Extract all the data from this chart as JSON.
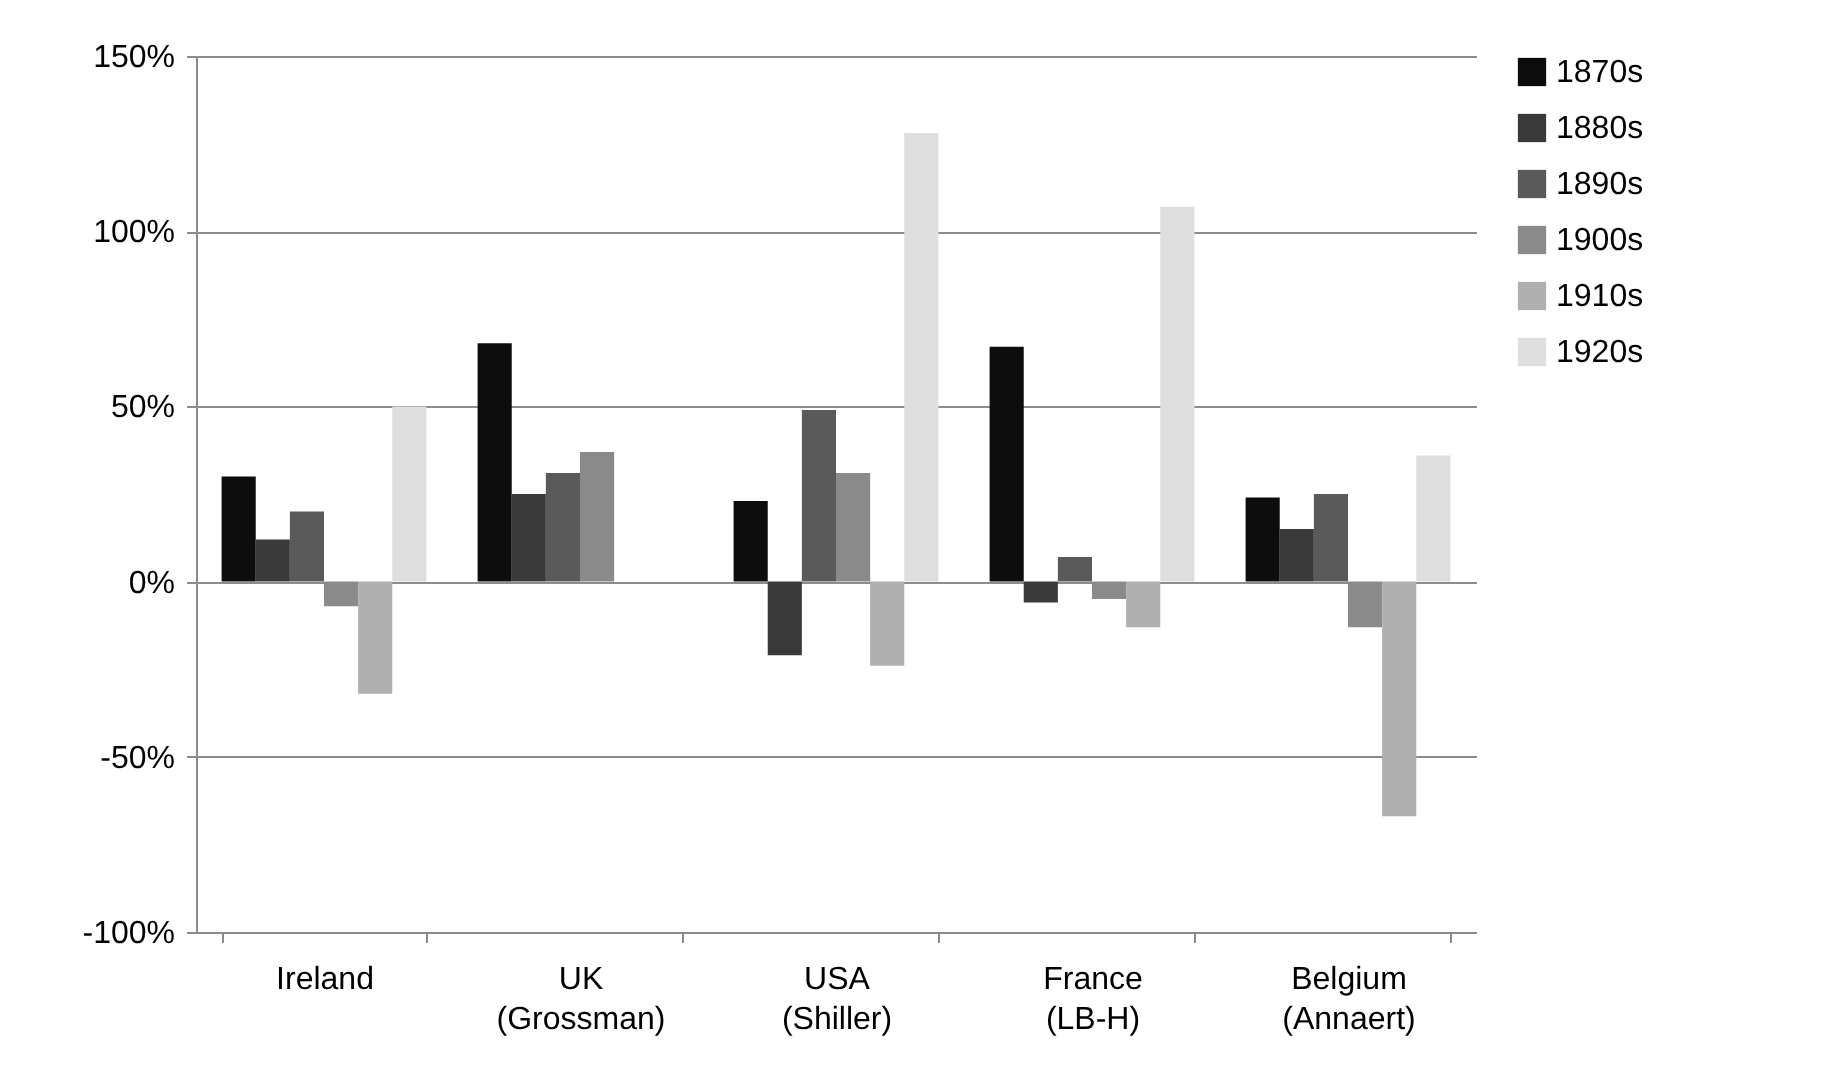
{
  "chart_data": {
    "type": "bar",
    "categories": [
      "Ireland",
      "UK\n(Grossman)",
      "USA\n(Shiller)",
      "France\n(LB-H)",
      "Belgium\n(Annaert)"
    ],
    "series": [
      {
        "name": "1870s",
        "color": "#0d0d0d",
        "values": [
          30,
          68,
          23,
          67,
          24
        ]
      },
      {
        "name": "1880s",
        "color": "#3a3a3a",
        "values": [
          12,
          25,
          -21,
          -6,
          15
        ]
      },
      {
        "name": "1890s",
        "color": "#5a5a5a",
        "values": [
          20,
          31,
          49,
          7,
          25
        ]
      },
      {
        "name": "1900s",
        "color": "#8a8a8a",
        "values": [
          -7,
          37,
          31,
          -5,
          -13
        ]
      },
      {
        "name": "1910s",
        "color": "#b0b0b0",
        "values": [
          -32,
          null,
          -24,
          -13,
          -67
        ]
      },
      {
        "name": "1920s",
        "color": "#dedede",
        "values": [
          50,
          null,
          128,
          107,
          36
        ]
      }
    ],
    "ylim": [
      -100,
      150
    ],
    "yticks": [
      {
        "value": -100,
        "label": "-100%"
      },
      {
        "value": -50,
        "label": "-50%"
      },
      {
        "value": 0,
        "label": "0%"
      },
      {
        "value": 50,
        "label": "50%"
      },
      {
        "value": 100,
        "label": "100%"
      },
      {
        "value": 150,
        "label": "150%"
      }
    ],
    "grid": "y",
    "legend": "right"
  }
}
